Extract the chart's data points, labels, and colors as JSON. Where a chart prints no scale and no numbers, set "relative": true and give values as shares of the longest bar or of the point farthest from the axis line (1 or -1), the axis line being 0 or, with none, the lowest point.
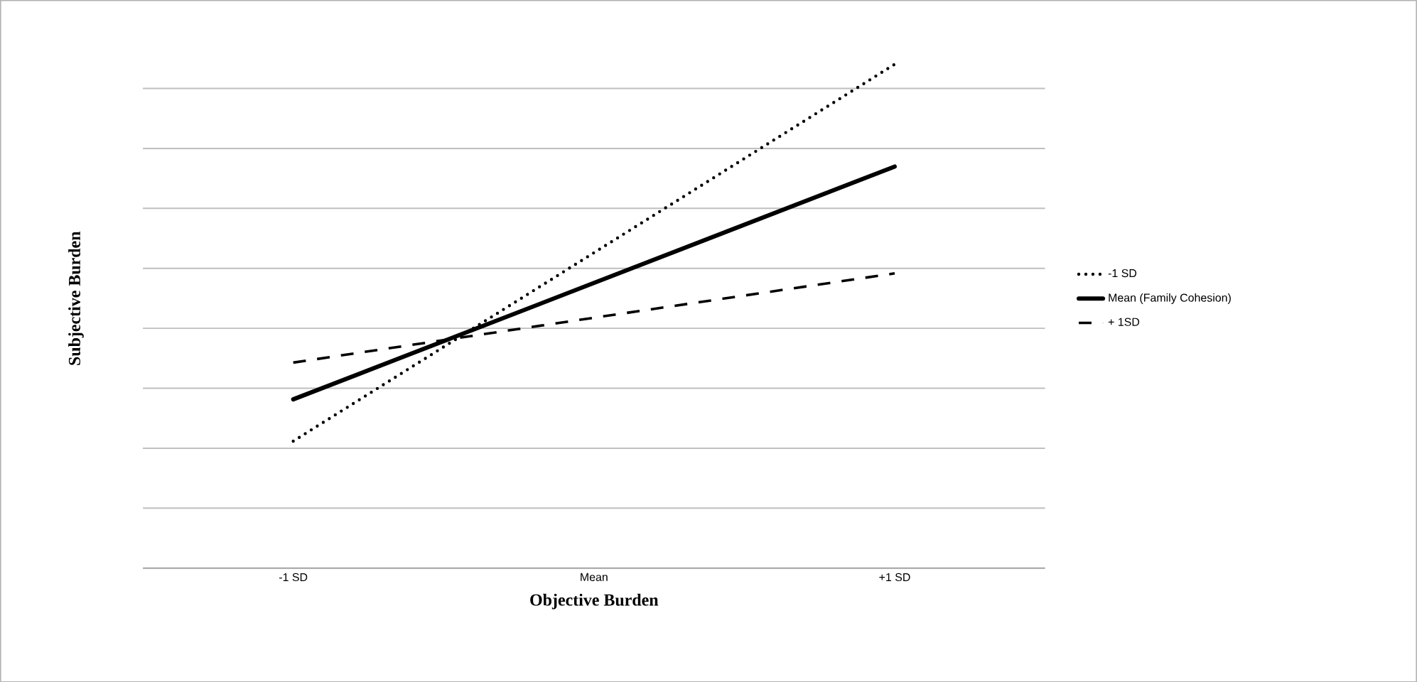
{
  "chart_data": {
    "type": "line",
    "relative": true,
    "xlabel": "Objective Burden",
    "ylabel": "Subjective Burden",
    "categories": [
      "-1 SD",
      "Mean",
      "+1 SD"
    ],
    "series": [
      {
        "name": "-1 SD",
        "color": "#000000",
        "line_style": "dotted",
        "values": [
          0.252,
          0.626,
          1.0
        ]
      },
      {
        "name": "Mean  (Family Cohesion)",
        "color": "#000000",
        "line_style": "solid",
        "values": [
          0.335,
          0.566,
          0.797
        ]
      },
      {
        "name": "+ 1SD",
        "color": "#000000",
        "line_style": "dashed",
        "values": [
          0.408,
          0.497,
          0.585
        ]
      }
    ],
    "grid": "y",
    "legend": "right",
    "marker": "none"
  }
}
